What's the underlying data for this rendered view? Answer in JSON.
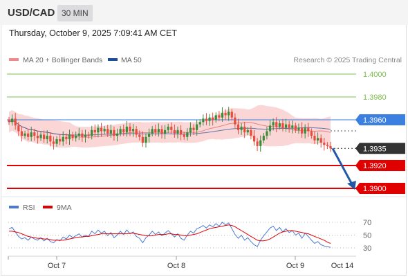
{
  "header": {
    "pair": "USD/CAD",
    "timeframe": "30 MIN",
    "datetime": "Thursday, October 9, 2025 7:09:41 AM CET"
  },
  "legend": {
    "ma20": "MA 20 + Bollinger Bands",
    "ma50": "MA 50",
    "credit": "Research © 2025 Trading Central"
  },
  "colors": {
    "up": "#e74c3c",
    "down": "#3a8c3a",
    "ma50": "#1f4e99",
    "boll": "#f8c8c8",
    "resistance_blue": "#3b7fe0",
    "support_red": "#e00000",
    "projection": "#2358a6",
    "rsi": "#4a7ad4",
    "rsi_ma": "#e00000"
  },
  "chart_data": [
    {
      "type": "candlestick",
      "title": "USD/CAD 30 MIN",
      "price_levels": [
        {
          "value": 1.4,
          "label": "1.4000",
          "kind": "target",
          "color": "#7dbf4b"
        },
        {
          "value": 1.398,
          "label": "1.3980",
          "kind": "target",
          "color": "#7dbf4b"
        },
        {
          "value": 1.396,
          "label": "1.3960",
          "kind": "resistance",
          "color": "#3b7fe0"
        },
        {
          "value": 1.3935,
          "label": "1.3935",
          "kind": "last",
          "color": "#333333"
        },
        {
          "value": 1.392,
          "label": "1.3920",
          "kind": "support",
          "color": "#e00000"
        },
        {
          "value": 1.39,
          "label": "1.3900",
          "kind": "support",
          "color": "#e00000"
        }
      ],
      "x_ticks": [
        "Oct 7",
        "Oct 8",
        "Oct 9",
        "Oct 14"
      ],
      "ylim": [
        1.3885,
        1.4015
      ],
      "close": [
        1.3958,
        1.3961,
        1.3955,
        1.395,
        1.3946,
        1.3948,
        1.3945,
        1.3949,
        1.3946,
        1.3944,
        1.3947,
        1.3943,
        1.3946,
        1.3941,
        1.3939,
        1.3943,
        1.3941,
        1.3945,
        1.3943,
        1.3947,
        1.3944,
        1.3946,
        1.3948,
        1.3945,
        1.3947,
        1.3946,
        1.3951,
        1.3949,
        1.3953,
        1.395,
        1.3952,
        1.3948,
        1.3951,
        1.3946,
        1.3948,
        1.3952,
        1.3949,
        1.3954,
        1.395,
        1.3952,
        1.3947,
        1.3945,
        1.394,
        1.3945,
        1.3948,
        1.3952,
        1.3949,
        1.3952,
        1.3948,
        1.3951,
        1.3954,
        1.3951,
        1.3948,
        1.3951,
        1.3947,
        1.3945,
        1.3949,
        1.3953,
        1.3951,
        1.3956,
        1.3958,
        1.3961,
        1.3959,
        1.3962,
        1.396,
        1.3964,
        1.3962,
        1.3966,
        1.3964,
        1.3967,
        1.3962,
        1.3956,
        1.3951,
        1.3954,
        1.3949,
        1.3951,
        1.3946,
        1.3941,
        1.3937,
        1.3942,
        1.3946,
        1.395,
        1.3955,
        1.3958,
        1.3954,
        1.3957,
        1.3953,
        1.3956,
        1.3953,
        1.3955,
        1.3951,
        1.3953,
        1.3948,
        1.3953,
        1.395,
        1.3946,
        1.3942,
        1.3944,
        1.394,
        1.3938,
        1.3937,
        1.3935
      ],
      "projection": {
        "from": 1.3935,
        "to": 1.39
      },
      "series": [
        {
          "name": "MA 20 + Bollinger Bands"
        },
        {
          "name": "MA 50"
        }
      ]
    },
    {
      "type": "line",
      "title": "RSI",
      "series": [
        {
          "name": "RSI"
        },
        {
          "name": "9MA"
        }
      ],
      "y_ticks": [
        70,
        50,
        30
      ],
      "ylim": [
        20,
        80
      ],
      "rsi": [
        60,
        62,
        55,
        48,
        44,
        46,
        42,
        47,
        44,
        42,
        46,
        41,
        45,
        40,
        38,
        43,
        41,
        47,
        44,
        50,
        46,
        49,
        52,
        47,
        50,
        48,
        56,
        52,
        58,
        53,
        56,
        49,
        54,
        46,
        50,
        56,
        51,
        58,
        52,
        55,
        48,
        45,
        38,
        46,
        50,
        56,
        51,
        55,
        49,
        53,
        57,
        52,
        47,
        52,
        45,
        42,
        50,
        56,
        53,
        60,
        62,
        65,
        61,
        66,
        63,
        68,
        64,
        70,
        66,
        69,
        60,
        51,
        45,
        50,
        42,
        46,
        40,
        35,
        32,
        42,
        49,
        55,
        61,
        64,
        57,
        62,
        55,
        60,
        54,
        57,
        50,
        53,
        45,
        53,
        48,
        42,
        37,
        40,
        35,
        33,
        32,
        31
      ],
      "rsi_ma": [
        56,
        56,
        55,
        54,
        52,
        50,
        48,
        47,
        46,
        45,
        45,
        44,
        44,
        43,
        42,
        42,
        42,
        42,
        43,
        44,
        45,
        46,
        47,
        47,
        48,
        48,
        49,
        50,
        51,
        52,
        52,
        52,
        52,
        52,
        52,
        52,
        52,
        52,
        53,
        53,
        52,
        51,
        50,
        49,
        49,
        49,
        50,
        51,
        51,
        51,
        52,
        52,
        51,
        51,
        50,
        49,
        49,
        50,
        51,
        52,
        54,
        56,
        58,
        60,
        61,
        62,
        63,
        64,
        65,
        66,
        65,
        63,
        60,
        57,
        54,
        51,
        48,
        45,
        42,
        41,
        41,
        42,
        44,
        47,
        50,
        53,
        55,
        56,
        57,
        57,
        56,
        55,
        54,
        53,
        52,
        50,
        48,
        46,
        44,
        42,
        39,
        37
      ]
    }
  ]
}
